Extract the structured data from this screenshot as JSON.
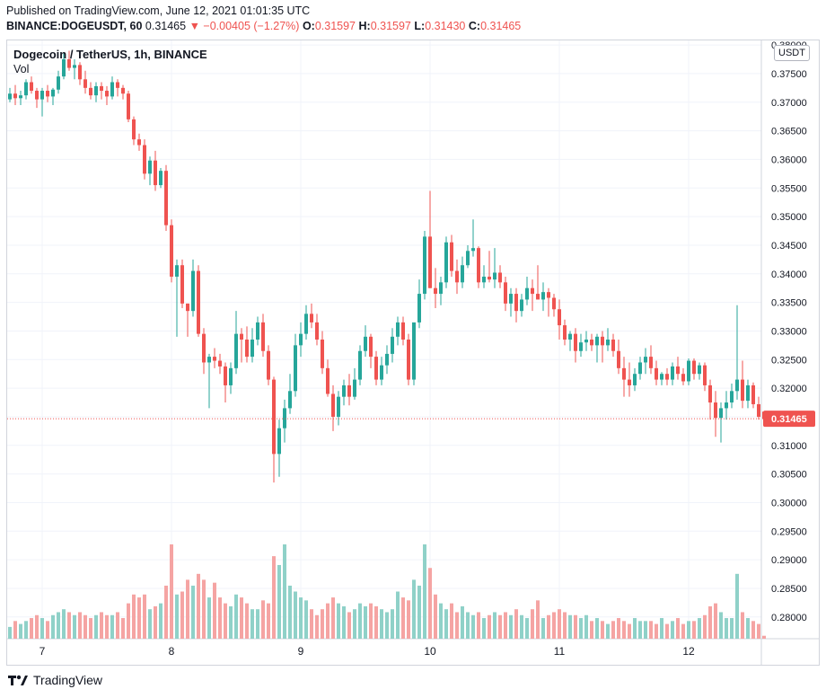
{
  "header": {
    "published": "Published on TradingView.com, June 12, 2021 01:01:35 UTC",
    "symbol_line": "BINANCE:DOGEUSDT, 60",
    "last": "0.31465",
    "change": "▼ −0.00405 (−1.27%)",
    "o_label": "O:",
    "o": "0.31597",
    "h_label": "H:",
    "h": "0.31597",
    "l_label": "L:",
    "l": "0.31430",
    "c_label": "C:",
    "c": "0.31465"
  },
  "legend": {
    "title": "Dogecoin / TetherUS, 1h, BINANCE",
    "volume_label": "Vol"
  },
  "currency": "USDT",
  "brand": "TradingView",
  "colors": {
    "up": "#26a69a",
    "down": "#ef5350",
    "up_volume": "#8fd1c8",
    "down_volume": "#f5a4a3",
    "grid": "#f0f3fa",
    "last_price": "#ef5350"
  },
  "chart_data": {
    "type": "candlestick",
    "title": "Dogecoin / TetherUS, 1h, BINANCE",
    "interval": "1h",
    "y_axis": {
      "label": "USDT",
      "ylim": [
        0.2762,
        0.3808
      ],
      "ticks": [
        "0.38000",
        "0.37500",
        "0.37000",
        "0.36500",
        "0.36000",
        "0.35500",
        "0.35000",
        "0.34500",
        "0.34000",
        "0.33500",
        "0.33000",
        "0.32500",
        "0.32000",
        "0.31500",
        "0.31000",
        "0.30500",
        "0.30000",
        "0.29500",
        "0.29000",
        "0.28500",
        "0.28000"
      ]
    },
    "x_axis": {
      "labels": [
        {
          "label": "7",
          "index": 6
        },
        {
          "label": "8",
          "index": 30
        },
        {
          "label": "9",
          "index": 54
        },
        {
          "label": "10",
          "index": 78
        },
        {
          "label": "11",
          "index": 102
        },
        {
          "label": "12",
          "index": 126
        }
      ]
    },
    "last_price": "0.31465",
    "volume_scale_max": 16,
    "candles": [
      [
        0.3705,
        0.3725,
        0.37,
        0.3715,
        2
      ],
      [
        0.3715,
        0.373,
        0.3695,
        0.3707,
        3
      ],
      [
        0.3707,
        0.372,
        0.3695,
        0.3712,
        2.5
      ],
      [
        0.3712,
        0.374,
        0.3705,
        0.3735,
        3
      ],
      [
        0.3735,
        0.3745,
        0.3715,
        0.372,
        3.5
      ],
      [
        0.372,
        0.3725,
        0.369,
        0.3705,
        4
      ],
      [
        0.3705,
        0.3725,
        0.3675,
        0.372,
        3.5
      ],
      [
        0.372,
        0.373,
        0.37,
        0.371,
        3
      ],
      [
        0.371,
        0.3725,
        0.3695,
        0.3722,
        4
      ],
      [
        0.3722,
        0.3755,
        0.3715,
        0.3745,
        4.5
      ],
      [
        0.3745,
        0.3785,
        0.374,
        0.3775,
        5
      ],
      [
        0.3775,
        0.379,
        0.3755,
        0.376,
        4.5
      ],
      [
        0.376,
        0.3775,
        0.374,
        0.3765,
        4
      ],
      [
        0.3765,
        0.377,
        0.373,
        0.374,
        4.5
      ],
      [
        0.374,
        0.3755,
        0.3715,
        0.3725,
        4
      ],
      [
        0.3725,
        0.3735,
        0.3705,
        0.3712,
        3.5
      ],
      [
        0.3712,
        0.3735,
        0.37,
        0.3728,
        4
      ],
      [
        0.3728,
        0.3735,
        0.3705,
        0.372,
        4.5
      ],
      [
        0.372,
        0.3728,
        0.3695,
        0.371,
        4
      ],
      [
        0.371,
        0.3745,
        0.3705,
        0.3735,
        4
      ],
      [
        0.3735,
        0.374,
        0.371,
        0.3725,
        4.5
      ],
      [
        0.3725,
        0.373,
        0.3705,
        0.3715,
        3.5
      ],
      [
        0.3715,
        0.372,
        0.3665,
        0.367,
        6
      ],
      [
        0.367,
        0.3675,
        0.3625,
        0.3635,
        7.5
      ],
      [
        0.3635,
        0.3645,
        0.3615,
        0.3625,
        7
      ],
      [
        0.3625,
        0.3635,
        0.3565,
        0.3575,
        7.5
      ],
      [
        0.3575,
        0.3605,
        0.3555,
        0.3598,
        5
      ],
      [
        0.3598,
        0.3615,
        0.3545,
        0.3555,
        5.5
      ],
      [
        0.3555,
        0.3585,
        0.355,
        0.358,
        6
      ],
      [
        0.358,
        0.359,
        0.3475,
        0.3485,
        9
      ],
      [
        0.3485,
        0.3495,
        0.3385,
        0.3395,
        16
      ],
      [
        0.3395,
        0.3425,
        0.329,
        0.3415,
        7.5
      ],
      [
        0.3415,
        0.3425,
        0.334,
        0.3348,
        8
      ],
      [
        0.3348,
        0.3348,
        0.329,
        0.3335,
        10
      ],
      [
        0.3335,
        0.3425,
        0.3325,
        0.3405,
        9
      ],
      [
        0.3405,
        0.3415,
        0.329,
        0.3295,
        11
      ],
      [
        0.3295,
        0.3305,
        0.3225,
        0.3245,
        10
      ],
      [
        0.3245,
        0.326,
        0.3165,
        0.3255,
        7
      ],
      [
        0.3255,
        0.327,
        0.3235,
        0.3248,
        9.5
      ],
      [
        0.3248,
        0.326,
        0.3225,
        0.3238,
        7
      ],
      [
        0.3238,
        0.3245,
        0.3175,
        0.3205,
        6
      ],
      [
        0.3205,
        0.3245,
        0.319,
        0.3235,
        5.5
      ],
      [
        0.3235,
        0.3335,
        0.3225,
        0.3295,
        7.5
      ],
      [
        0.3295,
        0.3305,
        0.3245,
        0.3285,
        7
      ],
      [
        0.3285,
        0.3308,
        0.3245,
        0.3255,
        6
      ],
      [
        0.3255,
        0.3305,
        0.3245,
        0.3285,
        5
      ],
      [
        0.3285,
        0.3325,
        0.3275,
        0.3315,
        5
      ],
      [
        0.3315,
        0.333,
        0.3255,
        0.3265,
        6.5
      ],
      [
        0.3265,
        0.3275,
        0.3205,
        0.3215,
        6
      ],
      [
        0.3215,
        0.322,
        0.3035,
        0.3085,
        14
      ],
      [
        0.3085,
        0.3145,
        0.3045,
        0.313,
        12.5
      ],
      [
        0.313,
        0.318,
        0.3105,
        0.3165,
        16
      ],
      [
        0.3165,
        0.3225,
        0.3155,
        0.3195,
        9
      ],
      [
        0.3195,
        0.3295,
        0.3185,
        0.3275,
        8
      ],
      [
        0.3275,
        0.3315,
        0.3255,
        0.3295,
        7
      ],
      [
        0.3295,
        0.3345,
        0.3285,
        0.333,
        6.5
      ],
      [
        0.333,
        0.3348,
        0.3305,
        0.3315,
        5
      ],
      [
        0.3315,
        0.333,
        0.3275,
        0.3285,
        4
      ],
      [
        0.3285,
        0.33,
        0.3225,
        0.3235,
        5
      ],
      [
        0.3235,
        0.325,
        0.3185,
        0.319,
        6
      ],
      [
        0.319,
        0.3205,
        0.3125,
        0.315,
        7
      ],
      [
        0.315,
        0.3195,
        0.3135,
        0.3185,
        6
      ],
      [
        0.3185,
        0.3215,
        0.317,
        0.3205,
        5.5
      ],
      [
        0.3205,
        0.3225,
        0.317,
        0.3185,
        4.5
      ],
      [
        0.3185,
        0.3235,
        0.318,
        0.3215,
        5
      ],
      [
        0.3215,
        0.3275,
        0.3205,
        0.3265,
        6
      ],
      [
        0.3265,
        0.331,
        0.3255,
        0.329,
        5.5
      ],
      [
        0.329,
        0.3295,
        0.3235,
        0.3255,
        6
      ],
      [
        0.3255,
        0.3265,
        0.3205,
        0.3215,
        5.5
      ],
      [
        0.3215,
        0.3255,
        0.3205,
        0.324,
        5
      ],
      [
        0.324,
        0.3275,
        0.3225,
        0.326,
        4.5
      ],
      [
        0.326,
        0.3305,
        0.3245,
        0.329,
        5
      ],
      [
        0.329,
        0.3325,
        0.3275,
        0.3315,
        8
      ],
      [
        0.3315,
        0.3325,
        0.3275,
        0.3285,
        7
      ],
      [
        0.3285,
        0.3295,
        0.3205,
        0.3215,
        6.5
      ],
      [
        0.3215,
        0.331,
        0.3205,
        0.3315,
        10
      ],
      [
        0.3315,
        0.339,
        0.3305,
        0.3365,
        9
      ],
      [
        0.3365,
        0.3475,
        0.3355,
        0.3465,
        16
      ],
      [
        0.3465,
        0.3545,
        0.3375,
        0.3375,
        12
      ],
      [
        0.3375,
        0.341,
        0.334,
        0.3365,
        7.5
      ],
      [
        0.3365,
        0.3395,
        0.3345,
        0.3385,
        6
      ],
      [
        0.3385,
        0.3465,
        0.3375,
        0.3455,
        5
      ],
      [
        0.3455,
        0.3468,
        0.3395,
        0.3405,
        6
      ],
      [
        0.3405,
        0.3425,
        0.3365,
        0.3385,
        4.5
      ],
      [
        0.3385,
        0.343,
        0.3375,
        0.3415,
        5.5
      ],
      [
        0.3415,
        0.345,
        0.341,
        0.344,
        4.5
      ],
      [
        0.344,
        0.3495,
        0.343,
        0.3445,
        4
      ],
      [
        0.3445,
        0.3448,
        0.3375,
        0.3385,
        4.5
      ],
      [
        0.3385,
        0.3415,
        0.3375,
        0.3395,
        3.5
      ],
      [
        0.3395,
        0.344,
        0.3385,
        0.339,
        4
      ],
      [
        0.339,
        0.3445,
        0.3375,
        0.3402,
        4.5
      ],
      [
        0.3402,
        0.3415,
        0.3375,
        0.3385,
        4
      ],
      [
        0.3385,
        0.3395,
        0.3335,
        0.3348,
        4.5
      ],
      [
        0.3348,
        0.3375,
        0.3325,
        0.3365,
        4
      ],
      [
        0.3365,
        0.3375,
        0.3315,
        0.3335,
        5
      ],
      [
        0.3335,
        0.3365,
        0.3325,
        0.3355,
        4
      ],
      [
        0.3355,
        0.3395,
        0.3345,
        0.3375,
        3.5
      ],
      [
        0.3375,
        0.339,
        0.3335,
        0.3365,
        5
      ],
      [
        0.3365,
        0.3415,
        0.3355,
        0.3355,
        6.5
      ],
      [
        0.3355,
        0.3385,
        0.3335,
        0.3368,
        3.5
      ],
      [
        0.3368,
        0.3375,
        0.3325,
        0.3358,
        4
      ],
      [
        0.3358,
        0.3365,
        0.3325,
        0.3338,
        4.5
      ],
      [
        0.3338,
        0.3355,
        0.3285,
        0.331,
        5
      ],
      [
        0.331,
        0.332,
        0.3275,
        0.3285,
        4.5
      ],
      [
        0.3285,
        0.33,
        0.3265,
        0.3295,
        4
      ],
      [
        0.3295,
        0.3305,
        0.3245,
        0.3265,
        4
      ],
      [
        0.3265,
        0.3295,
        0.3255,
        0.328,
        3.5
      ],
      [
        0.328,
        0.33,
        0.3265,
        0.3285,
        4
      ],
      [
        0.3285,
        0.3295,
        0.3265,
        0.3275,
        3
      ],
      [
        0.3275,
        0.3295,
        0.3245,
        0.329,
        3.5
      ],
      [
        0.329,
        0.33,
        0.3245,
        0.3275,
        3
      ],
      [
        0.3275,
        0.3305,
        0.3265,
        0.3285,
        2.5
      ],
      [
        0.3285,
        0.3295,
        0.3255,
        0.3265,
        3
      ],
      [
        0.3265,
        0.3285,
        0.3225,
        0.3235,
        3.5
      ],
      [
        0.3235,
        0.3255,
        0.3185,
        0.3215,
        3
      ],
      [
        0.3215,
        0.3245,
        0.3185,
        0.3205,
        2.5
      ],
      [
        0.3205,
        0.3235,
        0.3195,
        0.3225,
        3.5
      ],
      [
        0.3225,
        0.3255,
        0.3215,
        0.3245,
        3
      ],
      [
        0.3245,
        0.327,
        0.3225,
        0.3255,
        3
      ],
      [
        0.3255,
        0.3275,
        0.3225,
        0.3235,
        3
      ],
      [
        0.3235,
        0.3248,
        0.3205,
        0.3215,
        2.5
      ],
      [
        0.3215,
        0.3228,
        0.3205,
        0.3225,
        3.5
      ],
      [
        0.3225,
        0.3235,
        0.3205,
        0.3215,
        2.5
      ],
      [
        0.3215,
        0.3245,
        0.3205,
        0.3238,
        3
      ],
      [
        0.3238,
        0.3255,
        0.3215,
        0.3225,
        3.5
      ],
      [
        0.3225,
        0.3235,
        0.3205,
        0.3212,
        2.5
      ],
      [
        0.3212,
        0.3252,
        0.3205,
        0.3248,
        3
      ],
      [
        0.3248,
        0.3252,
        0.3215,
        0.3225,
        3
      ],
      [
        0.3225,
        0.3245,
        0.3215,
        0.324,
        3.5
      ],
      [
        0.324,
        0.3245,
        0.3195,
        0.3205,
        4
      ],
      [
        0.3205,
        0.3215,
        0.3145,
        0.3175,
        5.5
      ],
      [
        0.3175,
        0.3195,
        0.3115,
        0.3148,
        6
      ],
      [
        0.3148,
        0.3175,
        0.3105,
        0.3165,
        4.5
      ],
      [
        0.3165,
        0.3195,
        0.3145,
        0.3175,
        3.5
      ],
      [
        0.3175,
        0.3208,
        0.3165,
        0.3195,
        3.5
      ],
      [
        0.3195,
        0.3345,
        0.318,
        0.3215,
        11
      ],
      [
        0.3215,
        0.3248,
        0.3165,
        0.3178,
        4.5
      ],
      [
        0.3178,
        0.3215,
        0.3165,
        0.3205,
        3.5
      ],
      [
        0.3205,
        0.321,
        0.3165,
        0.3172,
        3
      ],
      [
        0.3172,
        0.3185,
        0.3145,
        0.315,
        2.5
      ],
      [
        0.3159,
        0.3159,
        0.3143,
        0.3146,
        0.5
      ]
    ]
  }
}
